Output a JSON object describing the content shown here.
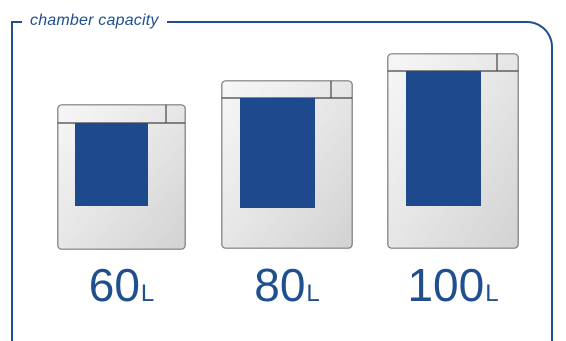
{
  "title": "chamber capacity",
  "colors": {
    "accent": "#1f4f8f",
    "tray": "#1e4a8d",
    "body": "#f2f2f2",
    "edge": "#7a7a7a"
  },
  "chambers": [
    {
      "value": "60",
      "unit": "L"
    },
    {
      "value": "80",
      "unit": "L"
    },
    {
      "value": "100",
      "unit": "L"
    }
  ]
}
